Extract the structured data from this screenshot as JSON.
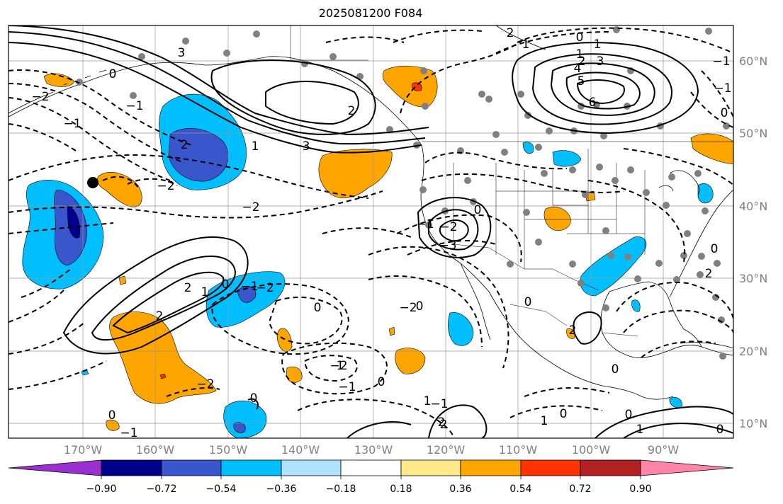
{
  "title": "2025081200 F084",
  "lat_labels": [
    "60°N",
    "50°N",
    "40°N",
    "30°N",
    "20°N",
    "10°N"
  ],
  "lon_labels": [
    "170°W",
    "160°W",
    "150°W",
    "140°W",
    "130°W",
    "120°W",
    "110°W",
    "100°W",
    "90°W"
  ],
  "colorbar": {
    "ticks": [
      "−0.90",
      "−0.72",
      "−0.54",
      "−0.36",
      "−0.18",
      "0.18",
      "0.36",
      "0.54",
      "0.72",
      "0.90"
    ],
    "colors": [
      "#9b30d0",
      "#00008b",
      "#3a56cc",
      "#00bfff",
      "#b0e2ff",
      "#ffffff",
      "#ffe98a",
      "#ffa500",
      "#ff3300",
      "#b22222",
      "#ff85a8"
    ]
  },
  "contour_labels": [
    "3",
    "2",
    "1",
    "0",
    "−1",
    "−2",
    "0",
    "1",
    "2",
    "2",
    "3",
    "1",
    "−1",
    "1",
    "2",
    "3",
    "4",
    "5",
    "6",
    "−2",
    "−2",
    "0",
    "−1",
    "−2",
    "−3",
    "2",
    "1",
    "0",
    "−1",
    "−2",
    "0",
    "0",
    "2",
    "−2",
    "0",
    "2",
    "1",
    "0",
    "−1",
    "−2",
    "−2",
    "−1",
    "0",
    "0",
    "−1",
    "1",
    "0",
    "0",
    "1",
    "2",
    "2",
    "0",
    "1",
    "2",
    "0",
    "0",
    "−1",
    "0",
    "−1"
  ]
}
